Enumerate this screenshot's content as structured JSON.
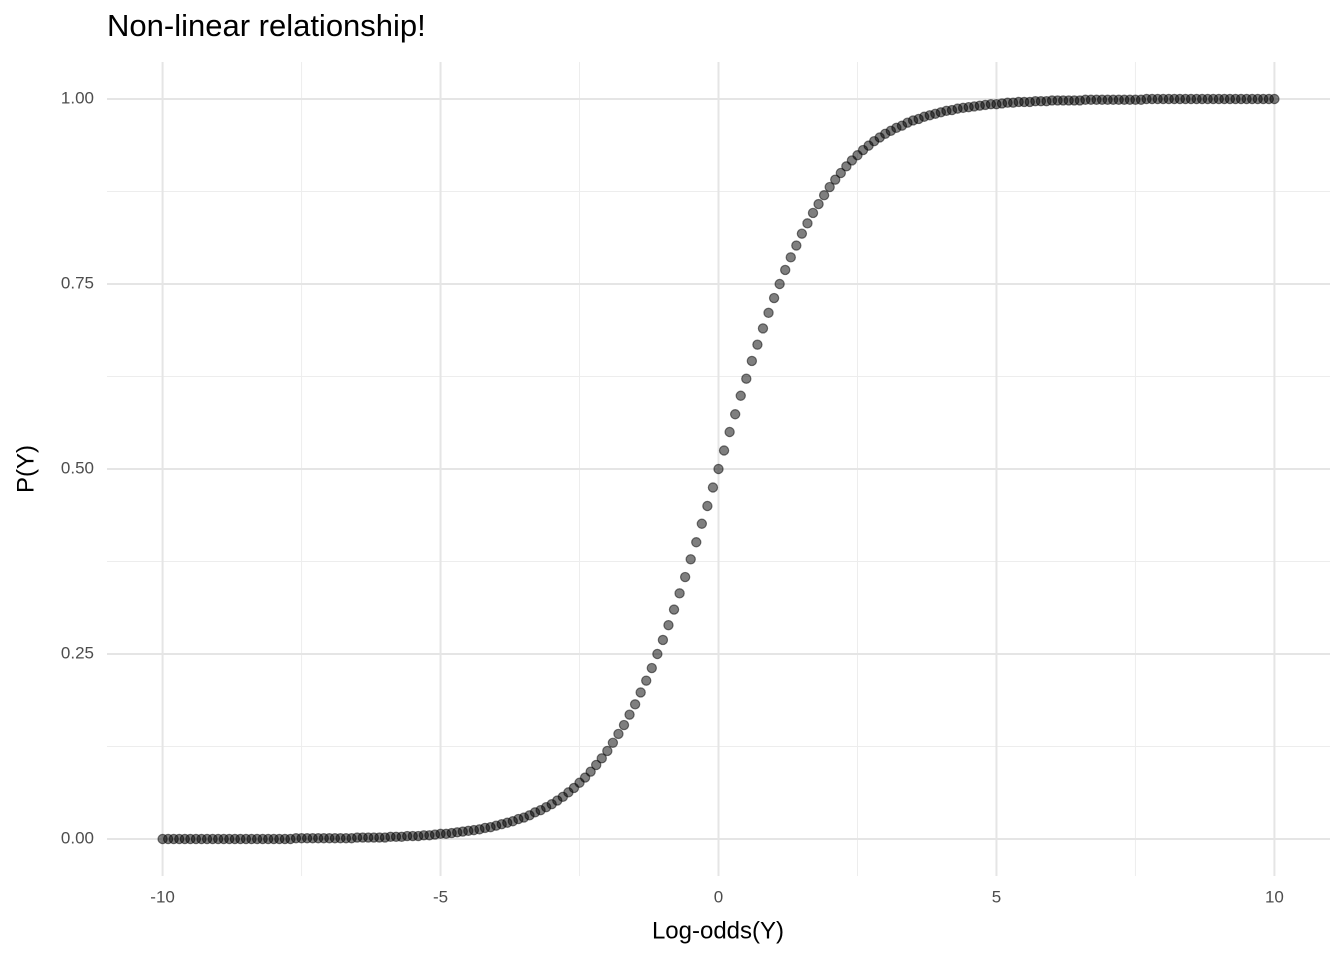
{
  "chart_data": {
    "type": "scatter",
    "title": "Non-linear relationship!",
    "x_label": "Log-odds(Y)",
    "y_label": "P(Y)",
    "color": "#000000",
    "alpha": 0.5,
    "grid": true,
    "xlim": [
      -11,
      11
    ],
    "ylim": [
      -0.05,
      1.05
    ],
    "xticks": [
      -10,
      -5,
      0,
      5,
      10
    ],
    "yticks": [
      {
        "value": 0,
        "label": "0.00"
      },
      {
        "value": 0.25,
        "label": "0.25"
      },
      {
        "value": 0.5,
        "label": "0.50"
      },
      {
        "value": 0.75,
        "label": "0.75"
      },
      {
        "value": 1,
        "label": "1.00"
      }
    ],
    "x": [
      -10,
      -9.9,
      -9.8,
      -9.7,
      -9.6,
      -9.5,
      -9.4,
      -9.3,
      -9.2,
      -9.1,
      -9,
      -8.9,
      -8.8,
      -8.7,
      -8.6,
      -8.5,
      -8.4,
      -8.3,
      -8.2,
      -8.1,
      -8,
      -7.9,
      -7.8,
      -7.7,
      -7.6,
      -7.5,
      -7.4,
      -7.3,
      -7.2,
      -7.1,
      -7,
      -6.9,
      -6.8,
      -6.7,
      -6.6,
      -6.5,
      -6.4,
      -6.3,
      -6.2,
      -6.1,
      -6,
      -5.9,
      -5.8,
      -5.7,
      -5.6,
      -5.5,
      -5.4,
      -5.3,
      -5.2,
      -5.1,
      -5,
      -4.9,
      -4.8,
      -4.7,
      -4.6,
      -4.5,
      -4.4,
      -4.3,
      -4.2,
      -4.1,
      -4,
      -3.9,
      -3.8,
      -3.7,
      -3.6,
      -3.5,
      -3.4,
      -3.3,
      -3.2,
      -3.1,
      -3,
      -2.9,
      -2.8,
      -2.7,
      -2.6,
      -2.5,
      -2.4,
      -2.3,
      -2.2,
      -2.1,
      -2,
      -1.9,
      -1.8,
      -1.7,
      -1.6,
      -1.5,
      -1.4,
      -1.3,
      -1.2,
      -1.1,
      -1,
      -0.9,
      -0.8,
      -0.7,
      -0.6,
      -0.5,
      -0.4,
      -0.3,
      -0.2,
      -0.1,
      0,
      0.1,
      0.2,
      0.3,
      0.4,
      0.5,
      0.6,
      0.7,
      0.8,
      0.9,
      1,
      1.1,
      1.2,
      1.3,
      1.4,
      1.5,
      1.6,
      1.7,
      1.8,
      1.9,
      2,
      2.1,
      2.2,
      2.3,
      2.4,
      2.5,
      2.6,
      2.7,
      2.8,
      2.9,
      3,
      3.1,
      3.2,
      3.3,
      3.4,
      3.5,
      3.6,
      3.7,
      3.8,
      3.9,
      4,
      4.1,
      4.2,
      4.3,
      4.4,
      4.5,
      4.6,
      4.7,
      4.8,
      4.9,
      5,
      5.1,
      5.2,
      5.3,
      5.4,
      5.5,
      5.6,
      5.7,
      5.8,
      5.9,
      6,
      6.1,
      6.2,
      6.3,
      6.4,
      6.5,
      6.6,
      6.7,
      6.8,
      6.9,
      7,
      7.1,
      7.2,
      7.3,
      7.4,
      7.5,
      7.6,
      7.7,
      7.8,
      7.9,
      8,
      8.1,
      8.2,
      8.3,
      8.4,
      8.5,
      8.6,
      8.7,
      8.8,
      8.9,
      9,
      9.1,
      9.2,
      9.3,
      9.4,
      9.5,
      9.6,
      9.7,
      9.8,
      9.9,
      10
    ],
    "values": [
      0,
      0,
      0,
      0,
      0,
      0,
      0,
      0,
      0,
      0,
      0,
      0,
      0,
      0,
      0,
      0,
      0,
      0,
      0,
      0,
      0,
      0,
      0,
      0,
      0.001,
      0.001,
      0.001,
      0.001,
      0.001,
      0.001,
      0.001,
      0.001,
      0.001,
      0.001,
      0.001,
      0.002,
      0.002,
      0.002,
      0.002,
      0.002,
      0.002,
      0.003,
      0.003,
      0.003,
      0.004,
      0.004,
      0.004,
      0.005,
      0.005,
      0.006,
      0.007,
      0.007,
      0.008,
      0.009,
      0.01,
      0.011,
      0.012,
      0.013,
      0.015,
      0.016,
      0.018,
      0.02,
      0.022,
      0.024,
      0.027,
      0.029,
      0.032,
      0.036,
      0.039,
      0.043,
      0.047,
      0.052,
      0.057,
      0.063,
      0.069,
      0.076,
      0.083,
      0.091,
      0.1,
      0.109,
      0.119,
      0.13,
      0.142,
      0.154,
      0.168,
      0.182,
      0.198,
      0.214,
      0.231,
      0.25,
      0.269,
      0.289,
      0.31,
      0.332,
      0.354,
      0.378,
      0.401,
      0.426,
      0.45,
      0.475,
      0.5,
      0.525,
      0.55,
      0.574,
      0.599,
      0.622,
      0.646,
      0.668,
      0.69,
      0.711,
      0.731,
      0.75,
      0.769,
      0.786,
      0.802,
      0.818,
      0.832,
      0.846,
      0.858,
      0.87,
      0.881,
      0.891,
      0.9,
      0.909,
      0.917,
      0.924,
      0.931,
      0.937,
      0.943,
      0.948,
      0.953,
      0.957,
      0.961,
      0.964,
      0.968,
      0.971,
      0.973,
      0.976,
      0.978,
      0.98,
      0.982,
      0.984,
      0.985,
      0.987,
      0.988,
      0.989,
      0.99,
      0.991,
      0.992,
      0.993,
      0.993,
      0.994,
      0.995,
      0.995,
      0.996,
      0.996,
      0.996,
      0.997,
      0.997,
      0.997,
      0.998,
      0.998,
      0.998,
      0.998,
      0.998,
      0.998,
      0.999,
      0.999,
      0.999,
      0.999,
      0.999,
      0.999,
      0.999,
      0.999,
      0.999,
      0.999,
      0.999,
      1,
      1,
      1,
      1,
      1,
      1,
      1,
      1,
      1,
      1,
      1,
      1,
      1,
      1,
      1,
      1,
      1,
      1,
      1,
      1,
      1,
      1,
      1,
      1
    ]
  }
}
